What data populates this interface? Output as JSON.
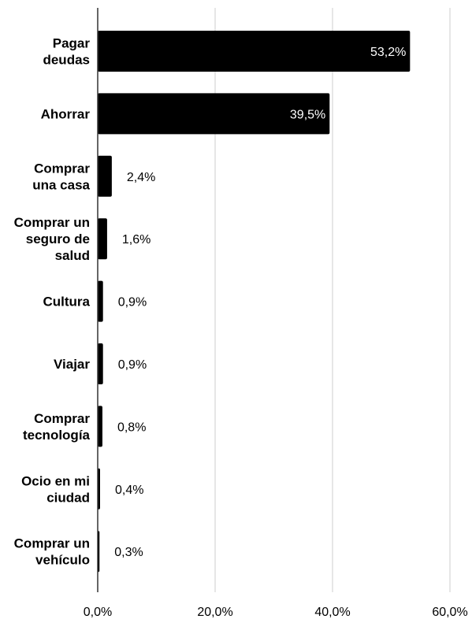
{
  "chart_data": {
    "type": "bar",
    "orientation": "horizontal",
    "title": "",
    "xlabel": "",
    "ylabel": "",
    "xlim": [
      0,
      60
    ],
    "grid": true,
    "legend": "none",
    "colors": {
      "bar": "#000000",
      "grid": "#cccccc",
      "axis": "#333333"
    },
    "x_ticks": [
      "0,0%",
      "20,0%",
      "40,0%",
      "60,0%"
    ],
    "x_tick_values": [
      0,
      20,
      40,
      60
    ],
    "categories": [
      [
        "Pagar",
        "deudas"
      ],
      [
        "Ahorrar"
      ],
      [
        "Comprar",
        "una casa"
      ],
      [
        "Comprar un",
        "seguro de",
        "salud"
      ],
      [
        "Cultura"
      ],
      [
        "Viajar"
      ],
      [
        "Comprar",
        "tecnología"
      ],
      [
        "Ocio en mi",
        "ciudad"
      ],
      [
        "Comprar un",
        "vehículo"
      ]
    ],
    "values": [
      53.2,
      39.5,
      2.4,
      1.6,
      0.9,
      0.9,
      0.8,
      0.4,
      0.3
    ],
    "data_labels": [
      "53,2%",
      "39,5%",
      "2,4%",
      "1,6%",
      "0,9%",
      "0,9%",
      "0,8%",
      "0,4%",
      "0,3%"
    ]
  }
}
